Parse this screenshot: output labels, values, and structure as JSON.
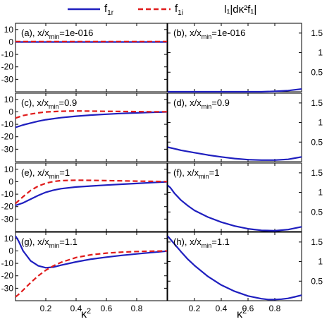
{
  "legend": {
    "left": [
      {
        "label_base": "f",
        "label_sub": "1r",
        "color": "#1f1fbf",
        "dash": "solid"
      },
      {
        "label_base": "f",
        "label_sub": "1i",
        "color": "#e01b1b",
        "dash": "dashed"
      }
    ],
    "right": {
      "text": "l₁|dκ²f₁|"
    }
  },
  "chart_data": [
    {
      "type": "line",
      "panel": "(a)",
      "title": "(a), x/x_min=1e-016",
      "x": [
        0,
        0.25,
        0.5,
        0.75,
        1.0
      ],
      "series": [
        {
          "name": "f1r",
          "values": [
            0,
            0,
            0,
            0,
            0
          ]
        },
        {
          "name": "f1i",
          "values": [
            0.3,
            0.3,
            0.3,
            0.3,
            0.3
          ]
        }
      ],
      "xlim": [
        0,
        1
      ],
      "ylim": [
        -40,
        15
      ],
      "yticks": [
        10,
        0,
        -10,
        -20,
        -30
      ],
      "yaxis_side": "left"
    },
    {
      "type": "line",
      "panel": "(b)",
      "title": "(b), x/x_min=1e-016",
      "x": [
        0,
        0.2,
        0.4,
        0.6,
        0.7,
        0.8,
        0.85,
        0.9,
        0.95,
        1.0
      ],
      "series": [
        {
          "name": "l1|dk2 f1|",
          "values": [
            0,
            0,
            0,
            0,
            0,
            0.01,
            0.02,
            0.03,
            0.05,
            0.07
          ]
        }
      ],
      "xlim": [
        0,
        1
      ],
      "ylim": [
        0,
        1.75
      ],
      "yticks": [
        0.5,
        1,
        1.5
      ],
      "yaxis_side": "right"
    },
    {
      "type": "line",
      "panel": "(c)",
      "title": "(c), x/x_min=0.9",
      "x": [
        0,
        0.05,
        0.1,
        0.15,
        0.2,
        0.3,
        0.4,
        0.5,
        0.6,
        0.7,
        0.8,
        0.9,
        1.0
      ],
      "series": [
        {
          "name": "f1r",
          "values": [
            -12.5,
            -10.5,
            -9,
            -7.5,
            -6.3,
            -4.7,
            -3.5,
            -2.6,
            -1.9,
            -1.3,
            -0.8,
            -0.4,
            0
          ]
        },
        {
          "name": "f1i",
          "values": [
            -5,
            -3,
            -1.8,
            -0.8,
            -0.1,
            0.5,
            0.7,
            0.6,
            0.4,
            0.3,
            0.2,
            0.1,
            0.1
          ]
        }
      ],
      "xlim": [
        0,
        1
      ],
      "ylim": [
        -40,
        15
      ],
      "yticks": [
        10,
        0,
        -10,
        -20,
        -30
      ],
      "yaxis_side": "left"
    },
    {
      "type": "line",
      "panel": "(d)",
      "title": "(d), x/x_min=0.9",
      "x": [
        0,
        0.05,
        0.1,
        0.2,
        0.3,
        0.4,
        0.5,
        0.6,
        0.7,
        0.8,
        0.9,
        0.95,
        1.0
      ],
      "series": [
        {
          "name": "l1|dk2 f1|",
          "values": [
            0.37,
            0.33,
            0.29,
            0.23,
            0.17,
            0.12,
            0.08,
            0.05,
            0.04,
            0.04,
            0.06,
            0.09,
            0.12
          ]
        }
      ],
      "xlim": [
        0,
        1
      ],
      "ylim": [
        0,
        1.75
      ],
      "yticks": [
        0.5,
        1,
        1.5
      ],
      "yaxis_side": "right"
    },
    {
      "type": "line",
      "panel": "(e)",
      "title": "(e), x/x_min=1",
      "x": [
        0,
        0.05,
        0.1,
        0.15,
        0.2,
        0.25,
        0.3,
        0.4,
        0.5,
        0.6,
        0.7,
        0.8,
        0.9,
        1.0
      ],
      "series": [
        {
          "name": "f1r",
          "values": [
            -19,
            -17,
            -14,
            -11,
            -8.5,
            -6.8,
            -5.6,
            -4.2,
            -3.4,
            -2.7,
            -2,
            -1.4,
            -0.7,
            -0.1
          ]
        },
        {
          "name": "f1i",
          "values": [
            -17.5,
            -12,
            -7,
            -3.5,
            -1.2,
            0.2,
            0.9,
            1.2,
            1.1,
            0.9,
            0.7,
            0.5,
            0.3,
            0.1
          ]
        }
      ],
      "xlim": [
        0,
        1
      ],
      "ylim": [
        -40,
        15
      ],
      "yticks": [
        10,
        0,
        -10,
        -20,
        -30
      ],
      "yaxis_side": "left"
    },
    {
      "type": "line",
      "panel": "(f)",
      "title": "(f), x/x_min=1",
      "x": [
        0,
        0.02,
        0.05,
        0.1,
        0.15,
        0.2,
        0.3,
        0.4,
        0.5,
        0.6,
        0.7,
        0.8,
        0.9,
        1.0
      ],
      "series": [
        {
          "name": "l1|dk2 f1|",
          "values": [
            1.18,
            1.12,
            0.98,
            0.8,
            0.66,
            0.54,
            0.37,
            0.24,
            0.14,
            0.07,
            0.03,
            0.02,
            0.05,
            0.12
          ]
        }
      ],
      "xlim": [
        0,
        1
      ],
      "ylim": [
        0,
        1.75
      ],
      "yticks": [
        0.5,
        1,
        1.5
      ],
      "yaxis_side": "right"
    },
    {
      "type": "line",
      "panel": "(g)",
      "title": "(g), x/x_min=1.1",
      "x": [
        0,
        0.02,
        0.05,
        0.1,
        0.15,
        0.2,
        0.25,
        0.3,
        0.4,
        0.5,
        0.6,
        0.7,
        0.8,
        0.9,
        1.0
      ],
      "series": [
        {
          "name": "f1r",
          "values": [
            12,
            8,
            0,
            -8,
            -12,
            -13.5,
            -13,
            -11.5,
            -8.8,
            -6.6,
            -5,
            -3.6,
            -2.4,
            -1.3,
            -0.2
          ]
        },
        {
          "name": "f1i",
          "values": [
            -37,
            -35,
            -31.5,
            -25.5,
            -20,
            -15.5,
            -12,
            -9.2,
            -5.3,
            -3.1,
            -1.8,
            -1,
            -0.5,
            -0.2,
            0
          ]
        }
      ],
      "xlim": [
        0,
        1
      ],
      "ylim": [
        -40,
        15
      ],
      "yticks": [
        10,
        0,
        -10,
        -20,
        -30
      ],
      "yaxis_side": "left"
    },
    {
      "type": "line",
      "panel": "(h)",
      "title": "(h), x/x_min=1.1",
      "x": [
        0,
        0.05,
        0.1,
        0.15,
        0.2,
        0.3,
        0.4,
        0.5,
        0.6,
        0.7,
        0.75,
        0.8,
        0.85,
        0.9,
        0.95,
        1.0
      ],
      "series": [
        {
          "name": "l1|dk2 f1|",
          "values": [
            1.65,
            1.45,
            1.25,
            1.06,
            0.9,
            0.62,
            0.4,
            0.24,
            0.12,
            0.05,
            0.03,
            0.03,
            0.04,
            0.06,
            0.1,
            0.14
          ]
        }
      ],
      "xlim": [
        0,
        1
      ],
      "ylim": [
        0,
        1.75
      ],
      "yticks": [
        0.5,
        1,
        1.5
      ],
      "yaxis_side": "right"
    }
  ],
  "xaxis": {
    "ticks": [
      0.2,
      0.4,
      0.6,
      0.8
    ],
    "label_base": "κ",
    "label_sup": "2"
  },
  "colors": {
    "f1r": "#1f1fbf",
    "f1i": "#e01b1b",
    "axis": "#000000"
  }
}
